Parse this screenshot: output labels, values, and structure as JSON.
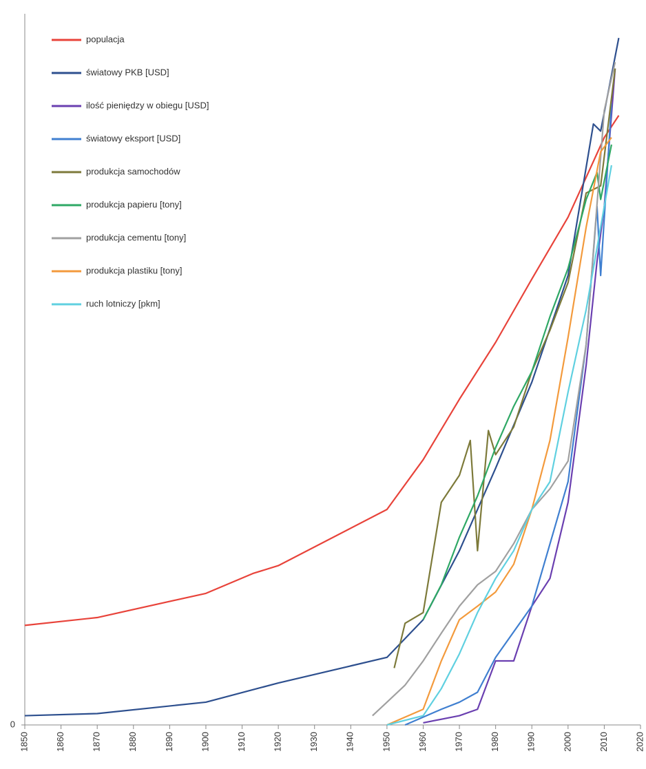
{
  "chart_data": {
    "type": "line",
    "xlim": [
      1850,
      2020
    ],
    "xticks": [
      1850,
      1860,
      1870,
      1880,
      1890,
      1900,
      1910,
      1920,
      1930,
      1940,
      1950,
      1960,
      1970,
      1980,
      1990,
      2000,
      2010,
      2020
    ],
    "ylim": [
      0,
      100
    ],
    "yticks": [
      0
    ],
    "legend": "upper left",
    "series": [
      {
        "name": "populacja",
        "color": "#e8433a",
        "x": [
          1850,
          1870,
          1900,
          1913,
          1920,
          1950,
          1960,
          1970,
          1980,
          1990,
          2000,
          2010,
          2014
        ],
        "values": [
          14,
          15.1,
          18.5,
          21.3,
          22.4,
          30.3,
          37.3,
          45.8,
          53.8,
          62.7,
          71.4,
          82.6,
          85.7
        ]
      },
      {
        "name": "światowy PKB [USD]",
        "color": "#2d4f8e",
        "x": [
          1850,
          1870,
          1900,
          1920,
          1950,
          1960,
          1970,
          1980,
          1990,
          2000,
          2007,
          2009,
          2014
        ],
        "values": [
          1.3,
          1.6,
          3.2,
          5.9,
          9.5,
          14.8,
          24.5,
          36.1,
          48.2,
          63.2,
          84.5,
          83.5,
          96.6
        ]
      },
      {
        "name": "ilość pieniędzy w obiegu [USD]",
        "color": "#6a3fb0",
        "x": [
          1960,
          1970,
          1975,
          1980,
          1985,
          1990,
          1995,
          2000,
          2005,
          2008,
          2010,
          2013
        ],
        "values": [
          0.3,
          1.3,
          2.2,
          9,
          9,
          16.7,
          20.6,
          31.3,
          50.6,
          65.2,
          72.9,
          92.3
        ]
      },
      {
        "name": "światowy eksport [USD]",
        "color": "#3f7fd0",
        "x": [
          1955,
          1965,
          1970,
          1975,
          1980,
          1990,
          2000,
          2005,
          2008,
          2009,
          2012
        ],
        "values": [
          0,
          2.2,
          3.2,
          4.6,
          9.5,
          16.7,
          34.2,
          53.5,
          72.9,
          63.2,
          87.4
        ]
      },
      {
        "name": "produkcja samochodów",
        "color": "#7d7a3a",
        "x": [
          1952,
          1955,
          1960,
          1965,
          1970,
          1973,
          1975,
          1978,
          1980,
          1985,
          1990,
          1995,
          2000,
          2005,
          2009,
          2013
        ],
        "values": [
          8,
          14.3,
          15.8,
          31.3,
          35.1,
          40,
          24.5,
          41.4,
          38,
          41.9,
          49.7,
          55.5,
          62.2,
          74.8,
          75.8,
          92.3
        ]
      },
      {
        "name": "produkcja papieru [tony]",
        "color": "#2ea865",
        "x": [
          1960,
          1965,
          1970,
          1975,
          1980,
          1985,
          1990,
          1995,
          2000,
          2005,
          2008,
          2009,
          2012
        ],
        "values": [
          14.8,
          19.7,
          26.4,
          32.2,
          39,
          44.8,
          49.7,
          57.4,
          64.2,
          73.9,
          77.7,
          73.9,
          81.6
        ]
      },
      {
        "name": "produkcja cementu [tony]",
        "color": "#a0a0a0",
        "x": [
          1946,
          1950,
          1955,
          1960,
          1965,
          1970,
          1975,
          1980,
          1985,
          1990,
          1995,
          2000,
          2005,
          2010,
          2013
        ],
        "values": [
          1.3,
          3.2,
          5.6,
          9,
          12.9,
          16.7,
          19.7,
          21.6,
          25.5,
          30.3,
          33.2,
          37.1,
          53.5,
          86.4,
          93.2
        ]
      },
      {
        "name": "produkcja plastiku [tony]",
        "color": "#f39a3c",
        "x": [
          1950,
          1960,
          1965,
          1970,
          1975,
          1980,
          1985,
          1990,
          1995,
          2000,
          2005,
          2009,
          2012
        ],
        "values": [
          0,
          2.2,
          9,
          14.8,
          16.7,
          18.7,
          22.6,
          30.3,
          40,
          54.5,
          70,
          80.6,
          82.6
        ]
      },
      {
        "name": "ruch lotniczy [pkm]",
        "color": "#5fd0e0",
        "x": [
          1950,
          1960,
          1965,
          1970,
          1975,
          1980,
          1985,
          1990,
          1995,
          2000,
          2005,
          2010,
          2012
        ],
        "values": [
          0,
          1.3,
          5.1,
          10,
          15.8,
          20.6,
          24.5,
          30.3,
          34.2,
          46.8,
          58.4,
          72.9,
          78.7
        ]
      }
    ]
  }
}
